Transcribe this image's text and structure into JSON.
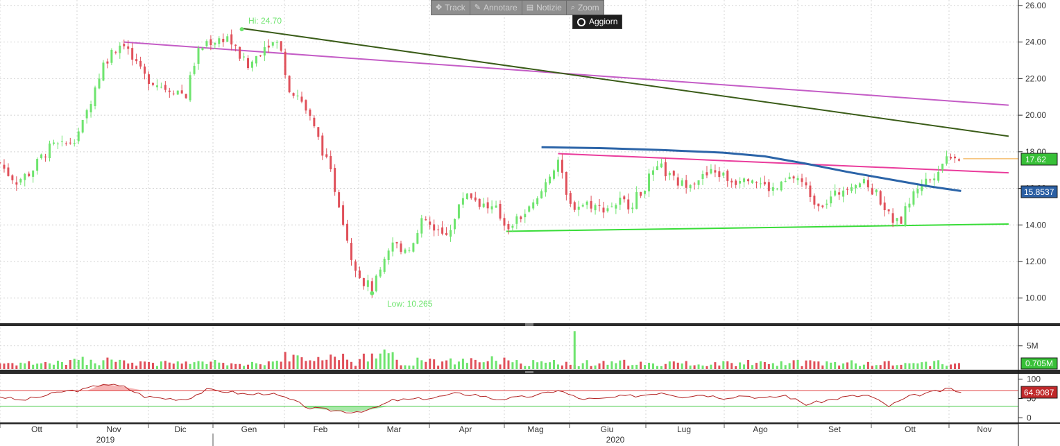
{
  "toolbar": {
    "items": [
      {
        "label": "Track",
        "icon": "crosshair-icon",
        "glyph": "✥"
      },
      {
        "label": "Annotare",
        "icon": "pencil-icon",
        "glyph": "✎"
      },
      {
        "label": "Notizie",
        "icon": "news-icon",
        "glyph": "▤"
      },
      {
        "label": "Zoom",
        "icon": "magnifier-icon",
        "glyph": "⌕"
      }
    ],
    "refresh_label": "Aggiorn"
  },
  "colors": {
    "up": "#6ee46e",
    "down": "#e0505a",
    "sma": "#2b64a8",
    "trend_magenta": "#c45cc6",
    "trend_darkgreen": "#3a5c18",
    "trend_pink": "#ea3c9c",
    "trend_green": "#38dc38",
    "rsi_line": "#b22222",
    "rsi_upper": "#e04040",
    "rsi_lower": "#40c840",
    "last_price_box": "#38c038",
    "sma_box": "#2b5fa3"
  },
  "chart_data": {
    "type": "candlestick",
    "x_axis": {
      "months": [
        "Ott",
        "Nov",
        "Dic",
        "Gen",
        "Feb",
        "Mar",
        "Apr",
        "Mag",
        "Giu",
        "Lug",
        "Ago",
        "Set",
        "Ott",
        "Nov"
      ],
      "years": [
        "2019",
        "2020"
      ]
    },
    "price_panel": {
      "ylim": [
        8.7,
        26.3
      ],
      "ticks": [
        "26.00",
        "24.00",
        "22.00",
        "20.00",
        "18.00",
        "16.00",
        "14.00",
        "12.00",
        "10.00"
      ],
      "tick_values": [
        26,
        24,
        22,
        20,
        18,
        16,
        14,
        12,
        10
      ],
      "grid": true,
      "last_price": "17.62",
      "sma_value": "15.8537",
      "high_annotation": "Hi: 24.70",
      "low_annotation": "Low: 10.265",
      "high_value": 24.7,
      "low_value": 10.265,
      "close_path": [
        {
          "t": 0,
          "v": 17.4
        },
        {
          "t": 0.3,
          "v": 16.9
        },
        {
          "t": 0.8,
          "v": 16.4
        },
        {
          "t": 1.5,
          "v": 16.9
        },
        {
          "t": 2.0,
          "v": 17.7
        },
        {
          "t": 2.5,
          "v": 18.3
        },
        {
          "t": 3.0,
          "v": 18.3
        },
        {
          "t": 3.5,
          "v": 18.6
        },
        {
          "t": 4.0,
          "v": 19.5
        },
        {
          "t": 4.5,
          "v": 21.2
        },
        {
          "t": 5.0,
          "v": 22.8
        },
        {
          "t": 5.5,
          "v": 23.6
        },
        {
          "t": 6.0,
          "v": 24.0
        },
        {
          "t": 6.5,
          "v": 22.8
        },
        {
          "t": 7.0,
          "v": 22.1
        },
        {
          "t": 7.5,
          "v": 21.8
        },
        {
          "t": 8.0,
          "v": 21.5
        },
        {
          "t": 8.5,
          "v": 21.4
        },
        {
          "t": 9.0,
          "v": 21.1
        },
        {
          "t": 9.5,
          "v": 23.3
        },
        {
          "t": 10.0,
          "v": 24.0
        },
        {
          "t": 10.5,
          "v": 24.1
        },
        {
          "t": 11.0,
          "v": 24.3
        },
        {
          "t": 11.5,
          "v": 23.4
        },
        {
          "t": 12.0,
          "v": 22.6
        },
        {
          "t": 12.5,
          "v": 23.4
        },
        {
          "t": 13.0,
          "v": 24.0
        },
        {
          "t": 13.5,
          "v": 23.9
        },
        {
          "t": 14.0,
          "v": 21.5
        },
        {
          "t": 14.5,
          "v": 21.0
        },
        {
          "t": 15.0,
          "v": 19.8
        },
        {
          "t": 15.5,
          "v": 18.4
        },
        {
          "t": 16.0,
          "v": 16.8
        },
        {
          "t": 16.5,
          "v": 14.8
        },
        {
          "t": 17.0,
          "v": 12.3
        },
        {
          "t": 17.5,
          "v": 11.0
        },
        {
          "t": 18.0,
          "v": 10.5
        },
        {
          "t": 18.5,
          "v": 11.6
        },
        {
          "t": 19.0,
          "v": 13.0
        },
        {
          "t": 19.5,
          "v": 12.7
        },
        {
          "t": 20.0,
          "v": 12.9
        },
        {
          "t": 20.5,
          "v": 14.4
        },
        {
          "t": 21.0,
          "v": 13.6
        },
        {
          "t": 21.5,
          "v": 13.4
        },
        {
          "t": 22.0,
          "v": 14.3
        },
        {
          "t": 22.5,
          "v": 15.9
        },
        {
          "t": 23.0,
          "v": 15.4
        },
        {
          "t": 23.5,
          "v": 15.0
        },
        {
          "t": 24.0,
          "v": 14.8
        },
        {
          "t": 24.5,
          "v": 13.9
        },
        {
          "t": 25.0,
          "v": 14.3
        },
        {
          "t": 25.5,
          "v": 14.7
        },
        {
          "t": 26.0,
          "v": 15.3
        },
        {
          "t": 26.5,
          "v": 16.6
        },
        {
          "t": 27.0,
          "v": 17.6
        },
        {
          "t": 27.5,
          "v": 15.0
        },
        {
          "t": 28.0,
          "v": 15.1
        },
        {
          "t": 28.5,
          "v": 15.2
        },
        {
          "t": 29.0,
          "v": 14.9
        },
        {
          "t": 29.5,
          "v": 15.0
        },
        {
          "t": 30.0,
          "v": 15.3
        },
        {
          "t": 30.5,
          "v": 15.1
        },
        {
          "t": 31.0,
          "v": 15.8
        },
        {
          "t": 31.5,
          "v": 16.7
        },
        {
          "t": 32.0,
          "v": 17.1
        },
        {
          "t": 32.5,
          "v": 16.5
        },
        {
          "t": 33.0,
          "v": 16.2
        },
        {
          "t": 33.5,
          "v": 16.5
        },
        {
          "t": 34.0,
          "v": 16.6
        },
        {
          "t": 34.5,
          "v": 16.9
        },
        {
          "t": 35.0,
          "v": 16.7
        },
        {
          "t": 35.5,
          "v": 16.3
        },
        {
          "t": 36.0,
          "v": 16.8
        },
        {
          "t": 36.5,
          "v": 16.5
        },
        {
          "t": 37.0,
          "v": 16.1
        },
        {
          "t": 37.5,
          "v": 15.9
        },
        {
          "t": 38.0,
          "v": 16.3
        },
        {
          "t": 38.5,
          "v": 16.7
        },
        {
          "t": 39.0,
          "v": 16.0
        },
        {
          "t": 39.5,
          "v": 15.2
        },
        {
          "t": 40.0,
          "v": 15.3
        },
        {
          "t": 40.5,
          "v": 15.7
        },
        {
          "t": 41.0,
          "v": 16.2
        },
        {
          "t": 41.5,
          "v": 16.4
        },
        {
          "t": 42.0,
          "v": 16.1
        },
        {
          "t": 42.5,
          "v": 15.6
        },
        {
          "t": 43.0,
          "v": 14.5
        },
        {
          "t": 43.5,
          "v": 14.0
        },
        {
          "t": 44.0,
          "v": 15.3
        },
        {
          "t": 44.5,
          "v": 16.3
        },
        {
          "t": 45.0,
          "v": 16.5
        },
        {
          "t": 45.5,
          "v": 17.3
        },
        {
          "t": 46.0,
          "v": 17.9
        },
        {
          "t": 46.5,
          "v": 17.62
        }
      ],
      "sma_line": [
        {
          "t": 26.2,
          "v": 18.25
        },
        {
          "t": 29.0,
          "v": 18.2
        },
        {
          "t": 32.0,
          "v": 18.1
        },
        {
          "t": 35.0,
          "v": 17.95
        },
        {
          "t": 37.0,
          "v": 17.75
        },
        {
          "t": 39.0,
          "v": 17.35
        },
        {
          "t": 41.0,
          "v": 16.9
        },
        {
          "t": 43.0,
          "v": 16.5
        },
        {
          "t": 45.0,
          "v": 16.1
        },
        {
          "t": 46.5,
          "v": 15.8537
        }
      ],
      "trendlines": [
        {
          "color_key": "trend_magenta",
          "from": {
            "t": 6.0,
            "v": 24.0
          },
          "to": {
            "t": 48.8,
            "v": 20.55
          }
        },
        {
          "color_key": "trend_darkgreen",
          "from": {
            "t": 11.7,
            "v": 24.75
          },
          "to": {
            "t": 48.8,
            "v": 18.85
          }
        },
        {
          "color_key": "trend_pink",
          "from": {
            "t": 27.0,
            "v": 17.9
          },
          "to": {
            "t": 48.8,
            "v": 16.85
          }
        },
        {
          "color_key": "trend_green",
          "from": {
            "t": 24.5,
            "v": 13.65
          },
          "to": {
            "t": 48.8,
            "v": 14.05
          }
        }
      ]
    },
    "volume_panel": {
      "ylim": [
        0,
        9
      ],
      "ticks": [
        "5M"
      ],
      "tick_values": [
        5
      ],
      "last_value": "0.705M",
      "spike_value": 8.2
    },
    "rsi_panel": {
      "ylim": [
        -10,
        110
      ],
      "ticks": [
        "100",
        "50",
        "0"
      ],
      "tick_values": [
        100,
        50,
        0
      ],
      "upper_level": 70,
      "lower_level": 30,
      "last_value": "64.9087",
      "path": [
        {
          "t": 0,
          "v": 55
        },
        {
          "t": 1,
          "v": 45
        },
        {
          "t": 2,
          "v": 55
        },
        {
          "t": 3,
          "v": 68
        },
        {
          "t": 4,
          "v": 72
        },
        {
          "t": 5,
          "v": 88
        },
        {
          "t": 6,
          "v": 80
        },
        {
          "t": 7,
          "v": 55
        },
        {
          "t": 8,
          "v": 50
        },
        {
          "t": 9,
          "v": 48
        },
        {
          "t": 10,
          "v": 72
        },
        {
          "t": 11,
          "v": 68
        },
        {
          "t": 12,
          "v": 60
        },
        {
          "t": 13,
          "v": 64
        },
        {
          "t": 14,
          "v": 48
        },
        {
          "t": 15,
          "v": 25
        },
        {
          "t": 16,
          "v": 20
        },
        {
          "t": 17,
          "v": 15
        },
        {
          "t": 18,
          "v": 22
        },
        {
          "t": 19,
          "v": 45
        },
        {
          "t": 20,
          "v": 48
        },
        {
          "t": 21,
          "v": 52
        },
        {
          "t": 22,
          "v": 62
        },
        {
          "t": 23,
          "v": 60
        },
        {
          "t": 24,
          "v": 48
        },
        {
          "t": 25,
          "v": 52
        },
        {
          "t": 26,
          "v": 58
        },
        {
          "t": 27,
          "v": 72
        },
        {
          "t": 28,
          "v": 50
        },
        {
          "t": 29,
          "v": 48
        },
        {
          "t": 30,
          "v": 55
        },
        {
          "t": 31,
          "v": 58
        },
        {
          "t": 32,
          "v": 66
        },
        {
          "t": 33,
          "v": 55
        },
        {
          "t": 34,
          "v": 60
        },
        {
          "t": 35,
          "v": 52
        },
        {
          "t": 36,
          "v": 58
        },
        {
          "t": 37,
          "v": 50
        },
        {
          "t": 38,
          "v": 58
        },
        {
          "t": 39,
          "v": 35
        },
        {
          "t": 40,
          "v": 45
        },
        {
          "t": 41,
          "v": 55
        },
        {
          "t": 42,
          "v": 58
        },
        {
          "t": 43,
          "v": 30
        },
        {
          "t": 44,
          "v": 55
        },
        {
          "t": 45,
          "v": 65
        },
        {
          "t": 46,
          "v": 75
        },
        {
          "t": 46.5,
          "v": 64.9
        }
      ]
    }
  }
}
